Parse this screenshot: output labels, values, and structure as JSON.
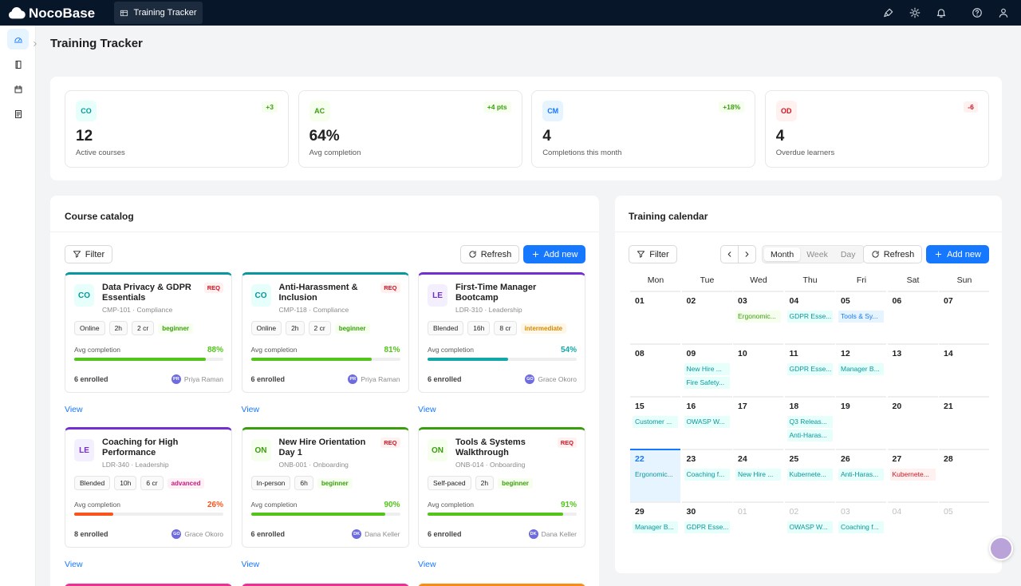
{
  "nav": {
    "logo": "NocoBase",
    "tab": "Training Tracker"
  },
  "page_title": "Training Tracker",
  "stats": [
    {
      "badge": "CO",
      "tone": "teal",
      "value": "12",
      "label": "Active courses",
      "delta": "+3",
      "trend": "up"
    },
    {
      "badge": "AC",
      "tone": "green",
      "value": "64%",
      "label": "Avg completion",
      "delta": "+4 pts",
      "trend": "up"
    },
    {
      "badge": "CM",
      "tone": "blue",
      "value": "4",
      "label": "Completions this month",
      "delta": "+18%",
      "trend": "up"
    },
    {
      "badge": "OD",
      "tone": "red",
      "value": "4",
      "label": "Overdue learners",
      "delta": "-6",
      "trend": "down"
    }
  ],
  "catalog": {
    "title": "Course catalog",
    "filter": "Filter",
    "refresh": "Refresh",
    "add": "Add new",
    "completion_label": "Avg completion",
    "view": "View",
    "courses": [
      {
        "badge": "CO",
        "tone": "teal",
        "title": "Data Privacy & GDPR Essentials",
        "code": "CMP-101 · Compliance",
        "required": "REQ",
        "tags": [
          "Online",
          "2h",
          "2 cr"
        ],
        "level": "beginner",
        "level_tone": "green",
        "completion": 88,
        "completion_text": "88%",
        "bar": "green",
        "enrolled": "6 enrolled",
        "initials": "PR",
        "instructor": "Priya Raman"
      },
      {
        "badge": "CO",
        "tone": "teal",
        "title": "Anti-Harassment & Inclusion",
        "code": "CMP-118 · Compliance",
        "required": "REQ",
        "tags": [
          "Online",
          "2h",
          "2 cr"
        ],
        "level": "beginner",
        "level_tone": "green",
        "completion": 81,
        "completion_text": "81%",
        "bar": "green",
        "enrolled": "6 enrolled",
        "initials": "PR",
        "instructor": "Priya Raman"
      },
      {
        "badge": "LE",
        "tone": "purple",
        "title": "First-Time Manager Bootcamp",
        "code": "LDR-310 · Leadership",
        "tags": [
          "Blended",
          "16h",
          "8 cr"
        ],
        "level": "intermediate",
        "level_tone": "gold",
        "completion": 54,
        "completion_text": "54%",
        "bar": "teal",
        "enrolled": "6 enrolled",
        "initials": "GO",
        "instructor": "Grace Okoro"
      },
      {
        "badge": "LE",
        "tone": "purple",
        "title": "Coaching for High Performance",
        "code": "LDR-340 · Leadership",
        "tags": [
          "Blended",
          "10h",
          "6 cr"
        ],
        "level": "advanced",
        "level_tone": "magenta",
        "completion": 26,
        "completion_text": "26%",
        "bar": "orange",
        "enrolled": "8 enrolled",
        "initials": "GO",
        "instructor": "Grace Okoro"
      },
      {
        "badge": "ON",
        "tone": "green",
        "title": "New Hire Orientation Day 1",
        "code": "ONB-001 · Onboarding",
        "required": "REQ",
        "tags": [
          "In-person",
          "6h"
        ],
        "level": "beginner",
        "level_tone": "green",
        "completion": 90,
        "completion_text": "90%",
        "bar": "green",
        "enrolled": "6 enrolled",
        "initials": "DK",
        "instructor": "Dana Keller"
      },
      {
        "badge": "ON",
        "tone": "green",
        "title": "Tools & Systems Walkthrough",
        "code": "ONB-014 · Onboarding",
        "required": "REQ",
        "tags": [
          "Self-paced",
          "2h"
        ],
        "level": "beginner",
        "level_tone": "green",
        "completion": 91,
        "completion_text": "91%",
        "bar": "green",
        "enrolled": "6 enrolled",
        "initials": "DK",
        "instructor": "Dana Keller"
      }
    ]
  },
  "calendar": {
    "title": "Training calendar",
    "filter": "Filter",
    "views": [
      "Month",
      "Week",
      "Day"
    ],
    "active_view": 0,
    "refresh": "Refresh",
    "add": "Add new",
    "weekdays": [
      "Mon",
      "Tue",
      "Wed",
      "Thu",
      "Fri",
      "Sat",
      "Sun"
    ],
    "weeks": [
      [
        {
          "day": "01",
          "events": []
        },
        {
          "day": "02",
          "events": []
        },
        {
          "day": "03",
          "events": [
            {
              "text": "Ergonomic...",
              "tone": "green"
            }
          ]
        },
        {
          "day": "04",
          "events": [
            {
              "text": "GDPR Esse...",
              "tone": "teal"
            }
          ]
        },
        {
          "day": "05",
          "events": [
            {
              "text": "Tools & Sy...",
              "tone": "blue"
            }
          ]
        },
        {
          "day": "06",
          "events": []
        },
        {
          "day": "07",
          "events": []
        }
      ],
      [
        {
          "day": "08",
          "events": []
        },
        {
          "day": "09",
          "events": [
            {
              "text": "New Hire ...",
              "tone": "teal"
            },
            {
              "text": "Fire Safety...",
              "tone": "teal"
            }
          ]
        },
        {
          "day": "10",
          "events": []
        },
        {
          "day": "11",
          "events": [
            {
              "text": "GDPR Esse...",
              "tone": "teal"
            }
          ]
        },
        {
          "day": "12",
          "events": [
            {
              "text": "Manager B...",
              "tone": "teal"
            }
          ]
        },
        {
          "day": "13",
          "events": []
        },
        {
          "day": "14",
          "events": []
        }
      ],
      [
        {
          "day": "15",
          "events": [
            {
              "text": "Customer ...",
              "tone": "teal"
            }
          ]
        },
        {
          "day": "16",
          "events": [
            {
              "text": "OWASP W...",
              "tone": "teal"
            }
          ]
        },
        {
          "day": "17",
          "events": []
        },
        {
          "day": "18",
          "events": [
            {
              "text": "Q3 Releas...",
              "tone": "teal"
            },
            {
              "text": "Anti-Haras...",
              "tone": "teal"
            }
          ]
        },
        {
          "day": "19",
          "events": []
        },
        {
          "day": "20",
          "events": []
        },
        {
          "day": "21",
          "events": []
        }
      ],
      [
        {
          "day": "22",
          "today": true,
          "events": [
            {
              "text": "Ergonomic...",
              "tone": "teal"
            }
          ]
        },
        {
          "day": "23",
          "events": [
            {
              "text": "Coaching f...",
              "tone": "teal"
            }
          ]
        },
        {
          "day": "24",
          "events": [
            {
              "text": "New Hire ...",
              "tone": "teal"
            }
          ]
        },
        {
          "day": "25",
          "events": [
            {
              "text": "Kubernete...",
              "tone": "teal"
            }
          ]
        },
        {
          "day": "26",
          "events": [
            {
              "text": "Anti-Haras...",
              "tone": "teal"
            }
          ]
        },
        {
          "day": "27",
          "events": [
            {
              "text": "Kubernete...",
              "tone": "red"
            }
          ]
        },
        {
          "day": "28",
          "events": []
        }
      ],
      [
        {
          "day": "29",
          "events": [
            {
              "text": "Manager B...",
              "tone": "teal"
            }
          ]
        },
        {
          "day": "30",
          "events": [
            {
              "text": "GDPR Esse...",
              "tone": "teal"
            }
          ]
        },
        {
          "day": "01",
          "muted": true,
          "events": []
        },
        {
          "day": "02",
          "muted": true,
          "events": [
            {
              "text": "OWASP W...",
              "tone": "teal"
            }
          ]
        },
        {
          "day": "03",
          "muted": true,
          "events": [
            {
              "text": "Coaching f...",
              "tone": "teal"
            }
          ]
        },
        {
          "day": "04",
          "muted": true,
          "events": []
        },
        {
          "day": "05",
          "muted": true,
          "events": []
        }
      ]
    ]
  }
}
